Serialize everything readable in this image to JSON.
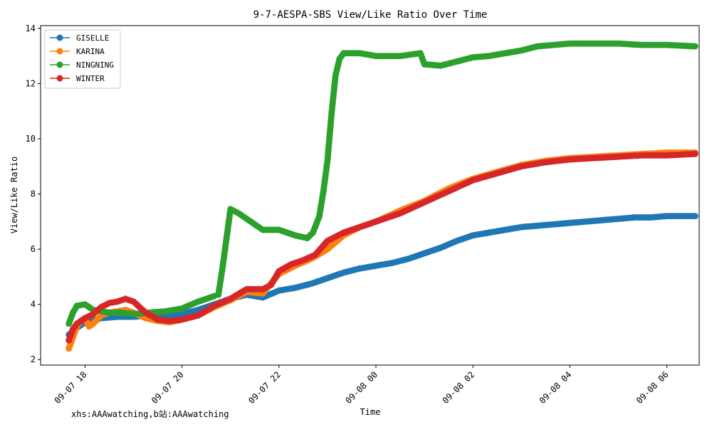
{
  "chart_data": {
    "type": "line",
    "title": "9-7-AESPA-SBS View/Like Ratio Over Time",
    "xlabel": "Time",
    "ylabel": "View/Like Ratio",
    "credit": "xhs:AAAwatching,b站:AAAwatching",
    "x_ticks": [
      "09-07 18",
      "09-07 20",
      "09-07 22",
      "09-08 00",
      "09-08 02",
      "09-08 04",
      "09-08 06"
    ],
    "y_ticks": [
      2,
      4,
      6,
      8,
      10,
      12,
      14
    ],
    "xlim": [
      "09-07 17:05",
      "09-08 06:40"
    ],
    "ylim": [
      1.8,
      14.1
    ],
    "grid": false,
    "legend_position": "upper-left",
    "series": [
      {
        "name": "GISELLE",
        "color": "#1f77b4",
        "x": [
          "09-07 17:40",
          "09-07 17:50",
          "09-07 18:00",
          "09-07 18:20",
          "09-07 18:40",
          "09-07 19:00",
          "09-07 19:20",
          "09-07 19:40",
          "09-07 20:00",
          "09-07 20:20",
          "09-07 20:40",
          "09-07 21:00",
          "09-07 21:20",
          "09-07 21:40",
          "09-07 22:00",
          "09-07 22:20",
          "09-07 22:40",
          "09-07 23:00",
          "09-07 23:20",
          "09-07 23:40",
          "09-08 00:00",
          "09-08 00:20",
          "09-08 00:40",
          "09-08 01:00",
          "09-08 01:20",
          "09-08 01:40",
          "09-08 02:00",
          "09-08 02:20",
          "09-08 02:40",
          "09-08 03:00",
          "09-08 03:20",
          "09-08 03:40",
          "09-08 04:00",
          "09-08 04:20",
          "09-08 04:40",
          "09-08 05:00",
          "09-08 05:20",
          "09-08 05:40",
          "09-08 06:00",
          "09-08 06:20",
          "09-08 06:35"
        ],
        "y": [
          2.9,
          3.15,
          3.35,
          3.5,
          3.55,
          3.55,
          3.6,
          3.6,
          3.65,
          3.8,
          4.0,
          4.2,
          4.35,
          4.25,
          4.5,
          4.6,
          4.75,
          4.95,
          5.15,
          5.3,
          5.4,
          5.5,
          5.65,
          5.85,
          6.05,
          6.3,
          6.5,
          6.6,
          6.7,
          6.8,
          6.85,
          6.9,
          6.95,
          7.0,
          7.05,
          7.1,
          7.15,
          7.15,
          7.2,
          7.2,
          7.2
        ]
      },
      {
        "name": "KARINA",
        "color": "#ff7f0e",
        "x": [
          "09-07 17:40",
          "09-07 17:45",
          "09-07 17:50",
          "09-07 17:55",
          "09-07 18:00",
          "09-07 18:05",
          "09-07 18:10",
          "09-07 18:20",
          "09-07 18:30",
          "09-07 18:40",
          "09-07 18:50",
          "09-07 19:00",
          "09-07 19:15",
          "09-07 19:30",
          "09-07 19:45",
          "09-07 20:00",
          "09-07 20:20",
          "09-07 20:40",
          "09-07 21:00",
          "09-07 21:20",
          "09-07 21:40",
          "09-07 22:00",
          "09-07 22:20",
          "09-07 22:40",
          "09-07 23:00",
          "09-07 23:20",
          "09-07 23:40",
          "09-08 00:00",
          "09-08 00:30",
          "09-08 01:00",
          "09-08 01:30",
          "09-08 02:00",
          "09-08 02:30",
          "09-08 03:00",
          "09-08 03:30",
          "09-08 04:00",
          "09-08 04:30",
          "09-08 05:00",
          "09-08 05:30",
          "09-08 06:00",
          "09-08 06:35"
        ],
        "y": [
          2.4,
          2.8,
          3.2,
          3.4,
          3.5,
          3.2,
          3.3,
          3.6,
          3.7,
          3.75,
          3.8,
          3.7,
          3.5,
          3.4,
          3.35,
          3.45,
          3.6,
          3.9,
          4.15,
          4.45,
          4.4,
          5.1,
          5.4,
          5.65,
          6.0,
          6.5,
          6.8,
          7.0,
          7.4,
          7.75,
          8.2,
          8.55,
          8.8,
          9.05,
          9.2,
          9.3,
          9.35,
          9.4,
          9.45,
          9.5,
          9.5
        ]
      },
      {
        "name": "NINGNING",
        "color": "#2ca02c",
        "x": [
          "09-07 17:40",
          "09-07 17:45",
          "09-07 17:50",
          "09-07 18:00",
          "09-07 18:10",
          "09-07 18:20",
          "09-07 18:30",
          "09-07 18:45",
          "09-07 19:00",
          "09-07 19:20",
          "09-07 19:40",
          "09-07 20:00",
          "09-07 20:20",
          "09-07 20:40",
          "09-07 20:45",
          "09-07 20:50",
          "09-07 21:00",
          "09-07 21:10",
          "09-07 21:20",
          "09-07 21:40",
          "09-07 22:00",
          "09-07 22:20",
          "09-07 22:35",
          "09-07 22:42",
          "09-07 22:50",
          "09-07 22:55",
          "09-07 23:00",
          "09-07 23:05",
          "09-07 23:10",
          "09-07 23:15",
          "09-07 23:20",
          "09-07 23:40",
          "09-08 00:00",
          "09-08 00:30",
          "09-08 00:55",
          "09-08 01:00",
          "09-08 01:20",
          "09-08 01:40",
          "09-08 02:00",
          "09-08 02:20",
          "09-08 02:40",
          "09-08 03:00",
          "09-08 03:20",
          "09-08 03:40",
          "09-08 04:00",
          "09-08 04:30",
          "09-08 05:00",
          "09-08 05:30",
          "09-08 06:00",
          "09-08 06:35"
        ],
        "y": [
          3.3,
          3.7,
          3.95,
          4.0,
          3.8,
          3.75,
          3.7,
          3.7,
          3.65,
          3.7,
          3.75,
          3.85,
          4.1,
          4.3,
          4.35,
          5.3,
          7.45,
          7.3,
          7.1,
          6.7,
          6.7,
          6.5,
          6.4,
          6.6,
          7.2,
          8.1,
          9.2,
          10.9,
          12.3,
          12.9,
          13.1,
          13.1,
          13.0,
          13.0,
          13.1,
          12.7,
          12.65,
          12.8,
          12.95,
          13.0,
          13.1,
          13.2,
          13.35,
          13.4,
          13.45,
          13.45,
          13.45,
          13.4,
          13.4,
          13.35
        ]
      },
      {
        "name": "WINTER",
        "color": "#d62728",
        "x": [
          "09-07 17:40",
          "09-07 17:45",
          "09-07 17:50",
          "09-07 18:00",
          "09-07 18:10",
          "09-07 18:20",
          "09-07 18:30",
          "09-07 18:40",
          "09-07 18:50",
          "09-07 19:00",
          "09-07 19:15",
          "09-07 19:30",
          "09-07 19:45",
          "09-07 20:00",
          "09-07 20:20",
          "09-07 20:40",
          "09-07 21:00",
          "09-07 21:20",
          "09-07 21:40",
          "09-07 21:50",
          "09-07 22:00",
          "09-07 22:15",
          "09-07 22:30",
          "09-07 22:45",
          "09-07 23:00",
          "09-07 23:20",
          "09-07 23:40",
          "09-08 00:00",
          "09-08 00:30",
          "09-08 01:00",
          "09-08 01:30",
          "09-08 02:00",
          "09-08 02:30",
          "09-08 03:00",
          "09-08 03:30",
          "09-08 04:00",
          "09-08 04:30",
          "09-08 05:00",
          "09-08 05:30",
          "09-08 06:00",
          "09-08 06:35"
        ],
        "y": [
          2.7,
          3.1,
          3.3,
          3.5,
          3.65,
          3.9,
          4.05,
          4.1,
          4.2,
          4.1,
          3.7,
          3.45,
          3.4,
          3.45,
          3.6,
          3.95,
          4.2,
          4.55,
          4.55,
          4.7,
          5.2,
          5.45,
          5.6,
          5.8,
          6.3,
          6.6,
          6.8,
          7.0,
          7.3,
          7.7,
          8.1,
          8.5,
          8.75,
          9.0,
          9.15,
          9.25,
          9.3,
          9.35,
          9.4,
          9.4,
          9.45
        ]
      }
    ]
  }
}
